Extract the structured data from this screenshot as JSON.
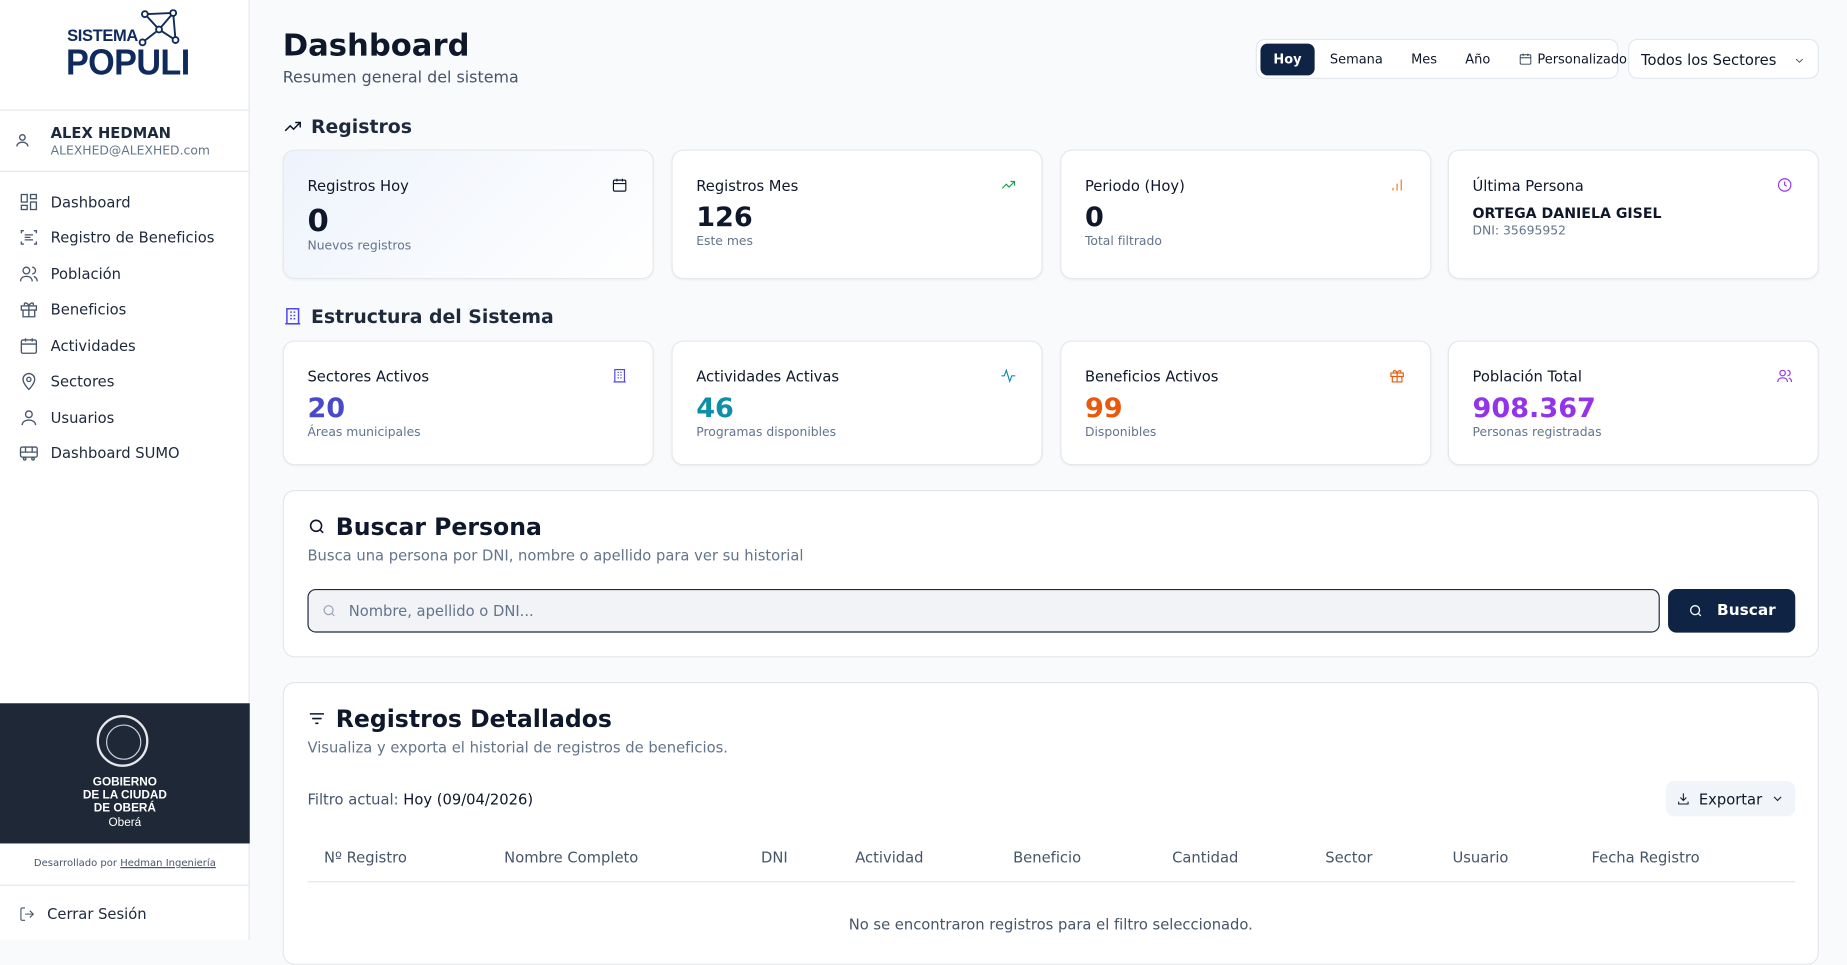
{
  "sidebar": {
    "brand_top": "SISTEMA",
    "brand_bottom": "POPULI",
    "user": {
      "name": "ALEX HEDMAN",
      "email": "ALEXHED@ALEXHED.com"
    },
    "nav": [
      "Dashboard",
      "Registro de Beneficios",
      "Población",
      "Beneficios",
      "Actividades",
      "Sectores",
      "Usuarios",
      "Dashboard SUMO"
    ],
    "footer": {
      "government": [
        "GOBIERNO",
        "DE LA CIUDAD",
        "DE OBERÁ"
      ],
      "city": "Oberá",
      "credit_prefix": "Desarrollado por",
      "credit_link": "Hedman Ingeniería"
    },
    "logout": "Cerrar Sesión"
  },
  "header": {
    "title": "Dashboard",
    "subtitle": "Resumen general del sistema",
    "periods": [
      "Hoy",
      "Semana",
      "Mes",
      "Año",
      "Personalizado"
    ],
    "sector_select": "Todos los Sectores"
  },
  "registros": {
    "title": "Registros",
    "cards": [
      {
        "label": "Registros Hoy",
        "value": 0,
        "note": "Nuevos registros"
      },
      {
        "label": "Registros Mes",
        "value": 126,
        "note": "Este mes"
      },
      {
        "label": "Periodo (Hoy)",
        "value": 0,
        "note": "Total filtrado"
      },
      {
        "label": "Última Persona",
        "name": "ORTEGA DANIELA GISEL",
        "dni": "DNI: 35695952"
      }
    ]
  },
  "estructura": {
    "title": "Estructura del Sistema",
    "cards": [
      {
        "label": "Sectores Activos",
        "value": 20,
        "note": "Áreas municipales"
      },
      {
        "label": "Actividades Activas",
        "value": 46,
        "note": "Programas disponibles"
      },
      {
        "label": "Beneficios Activos",
        "value": 99,
        "note": "Disponibles"
      },
      {
        "label": "Población Total",
        "value": "908.367",
        "note": "Personas registradas"
      }
    ]
  },
  "buscar": {
    "title": "Buscar Persona",
    "description": "Busca una persona por DNI, nombre o apellido para ver su historial",
    "placeholder": "Nombre, apellido o DNI...",
    "button": "Buscar"
  },
  "detallados": {
    "title": "Registros Detallados",
    "description": "Visualiza y exporta el historial de registros de beneficios.",
    "filter_label": "Filtro actual:",
    "filter_value": "Hoy (09/04/2026)",
    "export": "Exportar",
    "columns": [
      "Nº Registro",
      "Nombre Completo",
      "DNI",
      "Actividad",
      "Beneficio",
      "Cantidad",
      "Sector",
      "Usuario",
      "Fecha Registro"
    ],
    "empty": "No se encontraron registros para el filtro seleccionado."
  }
}
